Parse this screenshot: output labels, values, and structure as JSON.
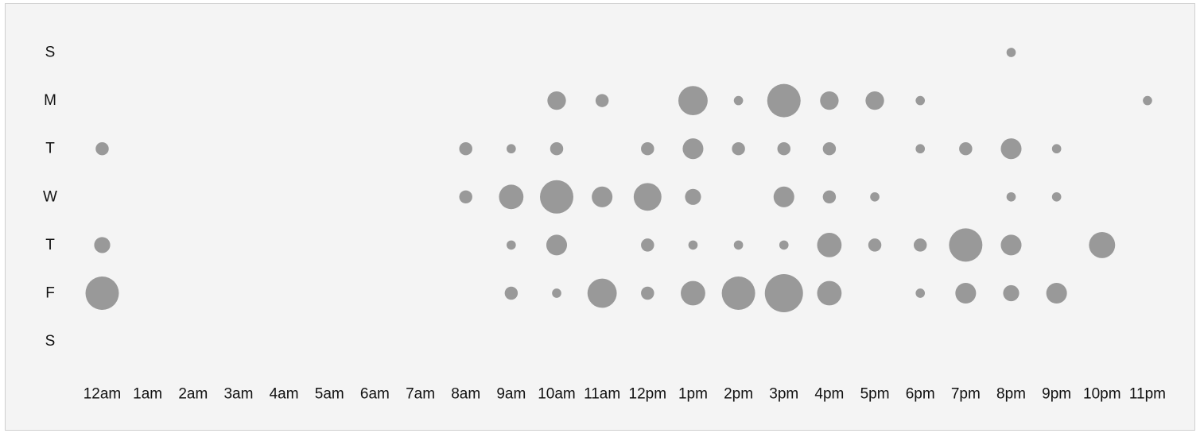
{
  "chart_data": {
    "type": "scatter",
    "subtype": "punchcard",
    "days": [
      "S",
      "M",
      "T",
      "W",
      "T",
      "F",
      "S"
    ],
    "hours": [
      "12am",
      "1am",
      "2am",
      "3am",
      "4am",
      "5am",
      "6am",
      "7am",
      "8am",
      "9am",
      "10am",
      "11am",
      "12pm",
      "1pm",
      "2pm",
      "3pm",
      "4pm",
      "5pm",
      "6pm",
      "7pm",
      "8pm",
      "9pm",
      "10pm",
      "11pm"
    ],
    "values": [
      [
        0,
        0,
        0,
        0,
        0,
        0,
        0,
        0,
        0,
        0,
        0,
        0,
        0,
        0,
        0,
        0,
        0,
        0,
        0,
        0,
        1,
        0,
        0,
        0
      ],
      [
        0,
        0,
        0,
        0,
        0,
        0,
        0,
        0,
        0,
        0,
        4,
        2,
        0,
        10,
        1,
        13,
        4,
        4,
        1,
        0,
        0,
        0,
        0,
        1
      ],
      [
        2,
        0,
        0,
        0,
        0,
        0,
        0,
        0,
        2,
        1,
        2,
        0,
        2,
        5,
        2,
        2,
        2,
        0,
        1,
        2,
        5,
        1,
        0,
        0
      ],
      [
        0,
        0,
        0,
        0,
        0,
        0,
        0,
        0,
        2,
        7,
        13,
        5,
        9,
        3,
        0,
        5,
        2,
        1,
        0,
        0,
        1,
        1,
        0,
        0
      ],
      [
        3,
        0,
        0,
        0,
        0,
        0,
        0,
        0,
        0,
        1,
        5,
        0,
        2,
        1,
        1,
        1,
        7,
        2,
        2,
        13,
        5,
        0,
        8,
        0
      ],
      [
        13,
        0,
        0,
        0,
        0,
        0,
        0,
        0,
        0,
        2,
        1,
        10,
        2,
        7,
        13,
        17,
        7,
        0,
        1,
        5,
        3,
        5,
        0,
        0
      ],
      [
        0,
        0,
        0,
        0,
        0,
        0,
        0,
        0,
        0,
        0,
        0,
        0,
        0,
        0,
        0,
        0,
        0,
        0,
        0,
        0,
        0,
        0,
        0,
        0
      ]
    ],
    "max_value": 17,
    "dot_color": "#999999",
    "background": "#f4f4f4",
    "border_color": "#cfcfcf",
    "grid": false,
    "legend": "none"
  }
}
